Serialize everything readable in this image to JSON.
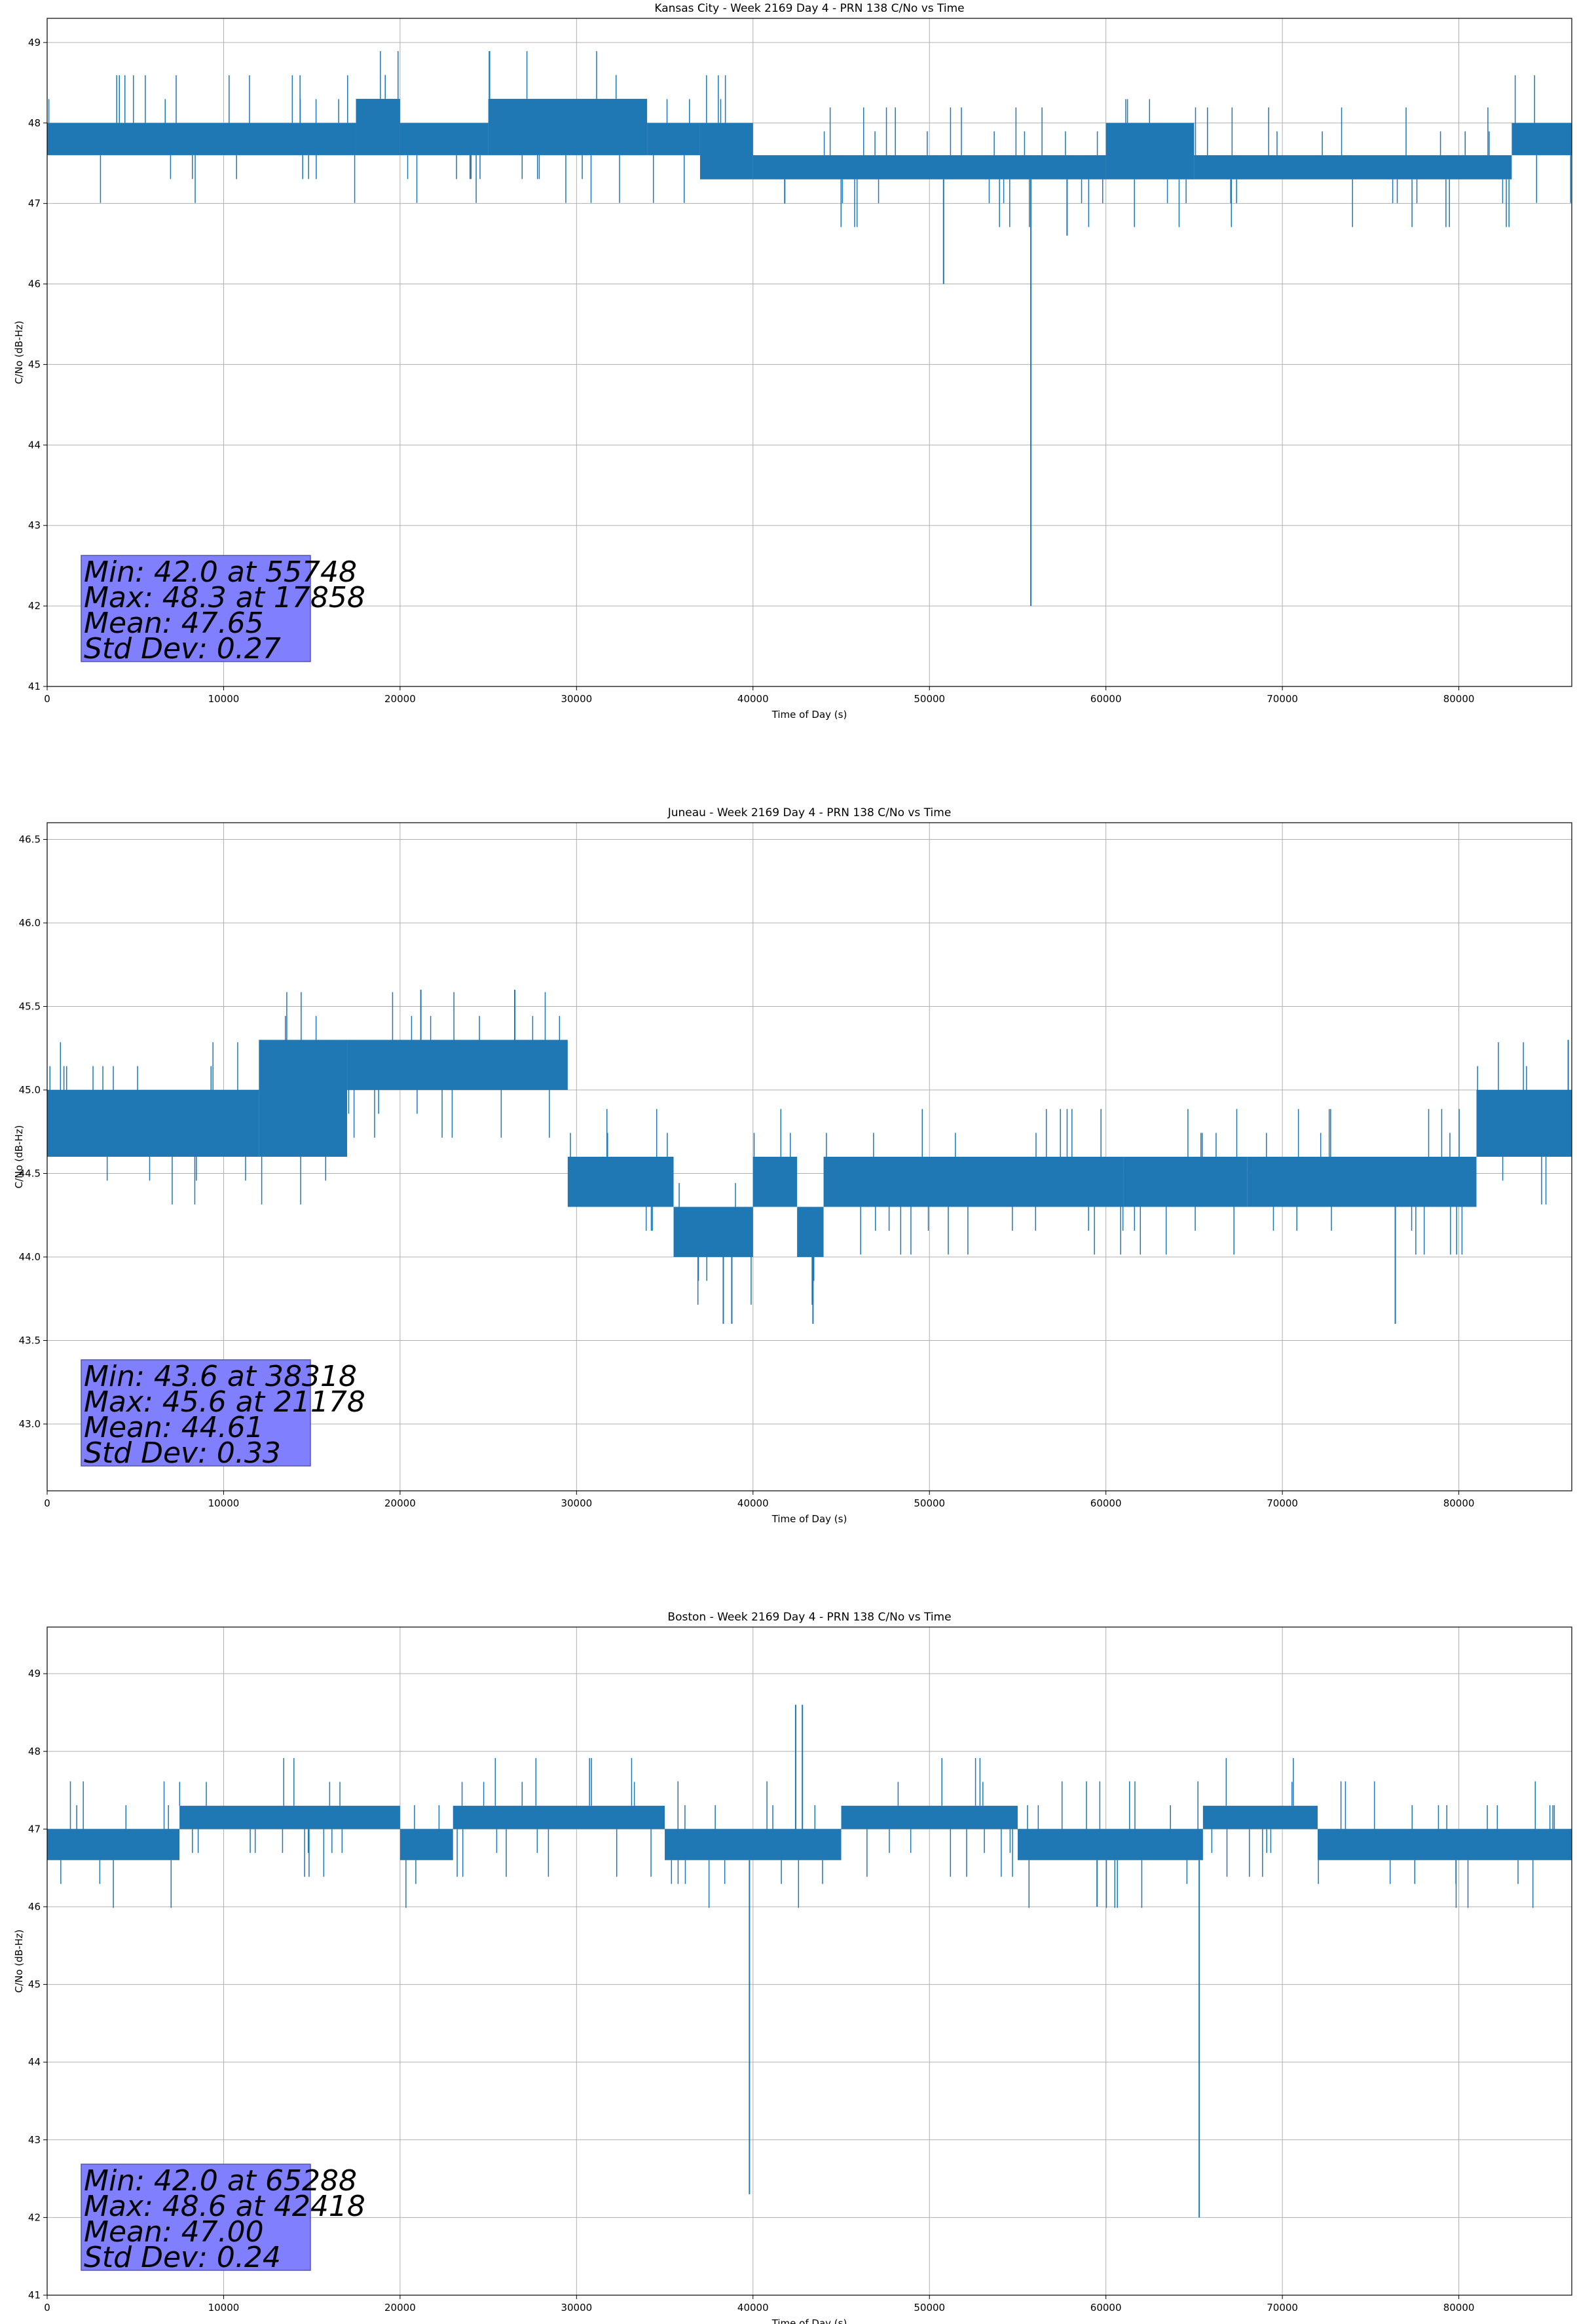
{
  "colors": {
    "line": "#1f77b4",
    "grid": "#b0b0b0",
    "stats_box": "#8080ff",
    "stats_border": "#5555aa"
  },
  "chart_data": [
    {
      "type": "line",
      "title": "Kansas City - Week 2169 Day 4 - PRN 138 C/No vs Time",
      "xlabel": "Time of Day (s)",
      "ylabel": "C/No (dB-Hz)",
      "xlim": [
        0,
        86400
      ],
      "ylim": [
        41,
        49.3
      ],
      "xticks": [
        "0",
        "10000",
        "20000",
        "30000",
        "40000",
        "50000",
        "60000",
        "70000",
        "80000"
      ],
      "yticks": [
        "41",
        "42",
        "43",
        "44",
        "45",
        "46",
        "47",
        "48",
        "49"
      ],
      "grid": true,
      "segments": [
        {
          "x": [
            0,
            17500
          ],
          "low": 47.6,
          "high": 48.0
        },
        {
          "x": [
            17500,
            20000
          ],
          "low": 47.6,
          "high": 48.3
        },
        {
          "x": [
            20000,
            25000
          ],
          "low": 47.6,
          "high": 48.0
        },
        {
          "x": [
            25000,
            34000
          ],
          "low": 47.6,
          "high": 48.3
        },
        {
          "x": [
            34000,
            37000
          ],
          "low": 47.6,
          "high": 48.0
        },
        {
          "x": [
            37000,
            40000
          ],
          "low": 47.3,
          "high": 48.0
        },
        {
          "x": [
            40000,
            60000
          ],
          "low": 47.3,
          "high": 47.6
        },
        {
          "x": [
            60000,
            65000
          ],
          "low": 47.3,
          "high": 48.0
        },
        {
          "x": [
            65000,
            83000
          ],
          "low": 47.3,
          "high": 47.6
        },
        {
          "x": [
            83000,
            86400
          ],
          "low": 47.6,
          "high": 48.0
        }
      ],
      "spikes": [
        {
          "x": 55748,
          "y": 42.0
        },
        {
          "x": 50800,
          "y": 46.0
        },
        {
          "x": 57800,
          "y": 46.6
        },
        {
          "x": 41800,
          "y": 47.0
        },
        {
          "x": 17858,
          "y": 48.3
        }
      ],
      "stats": [
        "Min: 42.0 at 55748",
        "Max: 48.3 at 17858",
        "Mean: 47.65",
        "Std Dev: 0.27"
      ]
    },
    {
      "type": "line",
      "title": "Juneau - Week 2169 Day 4 - PRN 138 C/No vs Time",
      "xlabel": "Time of Day (s)",
      "ylabel": "C/No (dB-Hz)",
      "xlim": [
        0,
        86400
      ],
      "ylim": [
        42.6,
        46.6
      ],
      "xticks": [
        "0",
        "10000",
        "20000",
        "30000",
        "40000",
        "50000",
        "60000",
        "70000",
        "80000"
      ],
      "yticks": [
        "43.0",
        "43.5",
        "44.0",
        "44.5",
        "45.0",
        "45.5",
        "46.0",
        "46.5"
      ],
      "grid": true,
      "segments": [
        {
          "x": [
            0,
            12000
          ],
          "low": 44.6,
          "high": 45.0
        },
        {
          "x": [
            12000,
            17000
          ],
          "low": 44.6,
          "high": 45.3
        },
        {
          "x": [
            17000,
            29500
          ],
          "low": 45.0,
          "high": 45.3
        },
        {
          "x": [
            29500,
            35500
          ],
          "low": 44.3,
          "high": 44.6
        },
        {
          "x": [
            35500,
            40000
          ],
          "low": 44.0,
          "high": 44.3
        },
        {
          "x": [
            40000,
            42500
          ],
          "low": 44.3,
          "high": 44.6
        },
        {
          "x": [
            42500,
            44000
          ],
          "low": 44.0,
          "high": 44.3
        },
        {
          "x": [
            44000,
            61000
          ],
          "low": 44.3,
          "high": 44.6
        },
        {
          "x": [
            61000,
            68000
          ],
          "low": 44.3,
          "high": 44.6
        },
        {
          "x": [
            68000,
            81000
          ],
          "low": 44.3,
          "high": 44.6
        },
        {
          "x": [
            81000,
            86400
          ],
          "low": 44.6,
          "high": 45.0
        }
      ],
      "spikes": [
        {
          "x": 38318,
          "y": 43.6
        },
        {
          "x": 38800,
          "y": 43.6
        },
        {
          "x": 43400,
          "y": 43.6
        },
        {
          "x": 76400,
          "y": 43.6
        },
        {
          "x": 21178,
          "y": 45.6
        },
        {
          "x": 26500,
          "y": 45.6
        },
        {
          "x": 86200,
          "y": 45.3
        }
      ],
      "stats": [
        "Min: 43.6 at 38318",
        "Max: 45.6 at 21178",
        "Mean: 44.61",
        "Std Dev: 0.33"
      ]
    },
    {
      "type": "line",
      "title": "Boston - Week 2169 Day 4 - PRN 138 C/No vs Time",
      "xlabel": "Time of Day (s)",
      "ylabel": "C/No (dB-Hz)",
      "xlim": [
        0,
        86400
      ],
      "ylim": [
        41,
        49.6
      ],
      "xticks": [
        "0",
        "10000",
        "20000",
        "30000",
        "40000",
        "50000",
        "60000",
        "70000",
        "80000"
      ],
      "yticks": [
        "41",
        "42",
        "43",
        "44",
        "45",
        "46",
        "47",
        "48",
        "49"
      ],
      "grid": true,
      "segments": [
        {
          "x": [
            0,
            7500
          ],
          "low": 46.6,
          "high": 47.0
        },
        {
          "x": [
            7500,
            20000
          ],
          "low": 47.0,
          "high": 47.3
        },
        {
          "x": [
            20000,
            23000
          ],
          "low": 46.6,
          "high": 47.0
        },
        {
          "x": [
            23000,
            35000
          ],
          "low": 47.0,
          "high": 47.3
        },
        {
          "x": [
            35000,
            45000
          ],
          "low": 46.6,
          "high": 47.0
        },
        {
          "x": [
            45000,
            55000
          ],
          "low": 47.0,
          "high": 47.3
        },
        {
          "x": [
            55000,
            65500
          ],
          "low": 46.6,
          "high": 47.0
        },
        {
          "x": [
            65500,
            72000
          ],
          "low": 47.0,
          "high": 47.3
        },
        {
          "x": [
            72000,
            86400
          ],
          "low": 46.6,
          "high": 47.0
        }
      ],
      "spikes": [
        {
          "x": 65288,
          "y": 42.0
        },
        {
          "x": 39800,
          "y": 42.3
        },
        {
          "x": 42418,
          "y": 48.6
        },
        {
          "x": 42800,
          "y": 48.6
        },
        {
          "x": 59500,
          "y": 46.0
        }
      ],
      "stats": [
        "Min: 42.0 at 65288",
        "Max: 48.6 at 42418",
        "Mean: 47.00",
        "Std Dev: 0.24"
      ]
    }
  ]
}
